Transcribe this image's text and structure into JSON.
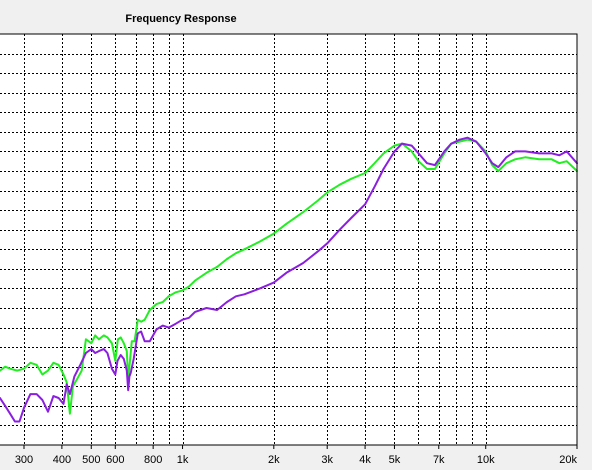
{
  "chart_data": {
    "type": "line",
    "title": "Frequency Response",
    "xlabel": "",
    "ylabel": "",
    "xscale": "log",
    "xlim": [
      250,
      20000
    ],
    "ylim": [
      0,
      21
    ],
    "grid": true,
    "x_ticks": [
      {
        "value": 300,
        "label": "300"
      },
      {
        "value": 400,
        "label": "400"
      },
      {
        "value": 500,
        "label": "500"
      },
      {
        "value": 600,
        "label": "600"
      },
      {
        "value": 800,
        "label": "800"
      },
      {
        "value": 1000,
        "label": "1k"
      },
      {
        "value": 2000,
        "label": "2k"
      },
      {
        "value": 3000,
        "label": "3k"
      },
      {
        "value": 4000,
        "label": "4k"
      },
      {
        "value": 5000,
        "label": "5k"
      },
      {
        "value": 7000,
        "label": "7k"
      },
      {
        "value": 10000,
        "label": "10k"
      },
      {
        "value": 20000,
        "label": "20k"
      }
    ],
    "x_minor": [
      700,
      900,
      6000,
      8000,
      9000
    ],
    "series": [
      {
        "color": "#22ee22",
        "points": [
          [
            250,
            3.8
          ],
          [
            260,
            4.0
          ],
          [
            270,
            3.9
          ],
          [
            285,
            3.8
          ],
          [
            300,
            3.9
          ],
          [
            315,
            4.2
          ],
          [
            330,
            4.1
          ],
          [
            345,
            3.6
          ],
          [
            360,
            3.8
          ],
          [
            375,
            4.2
          ],
          [
            390,
            4.1
          ],
          [
            405,
            3.6
          ],
          [
            415,
            3.2
          ],
          [
            425,
            1.6
          ],
          [
            435,
            3.0
          ],
          [
            450,
            3.4
          ],
          [
            465,
            3.8
          ],
          [
            480,
            5.4
          ],
          [
            500,
            5.2
          ],
          [
            515,
            5.6
          ],
          [
            530,
            5.4
          ],
          [
            550,
            5.6
          ],
          [
            565,
            5.5
          ],
          [
            585,
            5.2
          ],
          [
            600,
            4.3
          ],
          [
            612,
            5.4
          ],
          [
            625,
            5.5
          ],
          [
            640,
            5.2
          ],
          [
            655,
            4.8
          ],
          [
            662,
            3.3
          ],
          [
            668,
            4.0
          ],
          [
            680,
            5.3
          ],
          [
            695,
            5.3
          ],
          [
            712,
            6.4
          ],
          [
            730,
            6.3
          ],
          [
            750,
            6.4
          ],
          [
            780,
            6.9
          ],
          [
            820,
            7.2
          ],
          [
            860,
            7.3
          ],
          [
            900,
            7.6
          ],
          [
            950,
            7.8
          ],
          [
            1000,
            7.9
          ],
          [
            1050,
            8.1
          ],
          [
            1100,
            8.4
          ],
          [
            1200,
            8.8
          ],
          [
            1300,
            9.1
          ],
          [
            1400,
            9.5
          ],
          [
            1500,
            9.8
          ],
          [
            1600,
            10.0
          ],
          [
            1800,
            10.4
          ],
          [
            2000,
            10.8
          ],
          [
            2200,
            11.3
          ],
          [
            2500,
            11.9
          ],
          [
            2800,
            12.5
          ],
          [
            3000,
            12.9
          ],
          [
            3300,
            13.3
          ],
          [
            3600,
            13.6
          ],
          [
            4000,
            13.9
          ],
          [
            4300,
            14.4
          ],
          [
            4600,
            14.9
          ],
          [
            5000,
            15.3
          ],
          [
            5300,
            15.4
          ],
          [
            5700,
            15.0
          ],
          [
            6000,
            14.5
          ],
          [
            6400,
            14.1
          ],
          [
            6800,
            14.1
          ],
          [
            7300,
            14.9
          ],
          [
            7700,
            15.4
          ],
          [
            8200,
            15.5
          ],
          [
            8700,
            15.6
          ],
          [
            9300,
            15.5
          ],
          [
            10000,
            15.0
          ],
          [
            10500,
            14.3
          ],
          [
            11000,
            14.0
          ],
          [
            11700,
            14.4
          ],
          [
            12500,
            14.6
          ],
          [
            13500,
            14.7
          ],
          [
            15000,
            14.6
          ],
          [
            16500,
            14.6
          ],
          [
            17500,
            14.4
          ],
          [
            18500,
            14.5
          ],
          [
            20000,
            14.0
          ]
        ]
      },
      {
        "color": "#8a1fe0",
        "points": [
          [
            250,
            2.4
          ],
          [
            260,
            2.0
          ],
          [
            270,
            1.6
          ],
          [
            280,
            1.2
          ],
          [
            290,
            1.2
          ],
          [
            300,
            1.9
          ],
          [
            315,
            2.6
          ],
          [
            330,
            2.6
          ],
          [
            345,
            2.3
          ],
          [
            360,
            1.7
          ],
          [
            375,
            2.5
          ],
          [
            390,
            2.4
          ],
          [
            405,
            2.1
          ],
          [
            415,
            3.1
          ],
          [
            425,
            2.6
          ],
          [
            440,
            3.5
          ],
          [
            460,
            4.1
          ],
          [
            480,
            4.7
          ],
          [
            500,
            4.9
          ],
          [
            515,
            4.7
          ],
          [
            530,
            4.8
          ],
          [
            550,
            4.9
          ],
          [
            565,
            4.7
          ],
          [
            585,
            3.9
          ],
          [
            600,
            3.6
          ],
          [
            610,
            4.3
          ],
          [
            625,
            4.6
          ],
          [
            640,
            4.4
          ],
          [
            655,
            3.8
          ],
          [
            662,
            2.8
          ],
          [
            668,
            3.5
          ],
          [
            675,
            3.7
          ],
          [
            690,
            4.4
          ],
          [
            712,
            5.7
          ],
          [
            730,
            5.8
          ],
          [
            750,
            5.3
          ],
          [
            780,
            5.3
          ],
          [
            820,
            5.9
          ],
          [
            860,
            6.1
          ],
          [
            900,
            6.0
          ],
          [
            950,
            6.2
          ],
          [
            1000,
            6.4
          ],
          [
            1050,
            6.5
          ],
          [
            1100,
            6.8
          ],
          [
            1200,
            7.0
          ],
          [
            1300,
            6.9
          ],
          [
            1400,
            7.3
          ],
          [
            1500,
            7.6
          ],
          [
            1600,
            7.7
          ],
          [
            1800,
            8.0
          ],
          [
            2000,
            8.3
          ],
          [
            2200,
            8.8
          ],
          [
            2500,
            9.3
          ],
          [
            2800,
            9.9
          ],
          [
            3000,
            10.3
          ],
          [
            3300,
            11.0
          ],
          [
            3600,
            11.6
          ],
          [
            4000,
            12.3
          ],
          [
            4300,
            13.2
          ],
          [
            4600,
            14.1
          ],
          [
            5000,
            15.0
          ],
          [
            5300,
            15.4
          ],
          [
            5700,
            15.3
          ],
          [
            6000,
            14.9
          ],
          [
            6400,
            14.4
          ],
          [
            6800,
            14.3
          ],
          [
            7300,
            15.0
          ],
          [
            7700,
            15.4
          ],
          [
            8200,
            15.6
          ],
          [
            8700,
            15.7
          ],
          [
            9300,
            15.5
          ],
          [
            10000,
            14.9
          ],
          [
            10500,
            14.4
          ],
          [
            11000,
            14.2
          ],
          [
            11700,
            14.7
          ],
          [
            12500,
            15.0
          ],
          [
            13500,
            15.0
          ],
          [
            15000,
            14.9
          ],
          [
            16500,
            14.9
          ],
          [
            17500,
            14.8
          ],
          [
            18500,
            15.0
          ],
          [
            20000,
            14.4
          ]
        ]
      }
    ]
  }
}
